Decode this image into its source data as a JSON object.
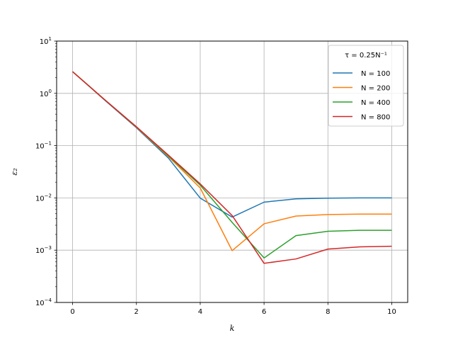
{
  "chart_data": {
    "type": "line",
    "title": "",
    "xlabel": "k",
    "ylabel": "ε₂",
    "yscale": "log",
    "xlim": [
      -0.5,
      10.5
    ],
    "ylim": [
      0.0001,
      10
    ],
    "grid": true,
    "x_ticks": [
      0,
      2,
      4,
      6,
      8,
      10
    ],
    "x_tick_labels": [
      "0",
      "2",
      "4",
      "6",
      "8",
      "10"
    ],
    "y_ticks": [
      0.0001,
      0.001,
      0.01,
      0.1,
      1,
      10
    ],
    "y_tick_labels": [
      {
        "base": "10",
        "exp": "−4"
      },
      {
        "base": "10",
        "exp": "−3"
      },
      {
        "base": "10",
        "exp": "−2"
      },
      {
        "base": "10",
        "exp": "−1"
      },
      {
        "base": "10",
        "exp": "0"
      },
      {
        "base": "10",
        "exp": "1"
      }
    ],
    "legend": {
      "position": "top-right",
      "title": "τ = 0.25N⁻¹"
    },
    "x": [
      0,
      1,
      2,
      3,
      4,
      5,
      6,
      7,
      8,
      9,
      10
    ],
    "series": [
      {
        "name": "N = 100",
        "color": "#1f77b4",
        "values": [
          2.6,
          0.75,
          0.22,
          0.058,
          0.0099,
          0.0043,
          0.0083,
          0.0096,
          0.0099,
          0.01,
          0.01
        ]
      },
      {
        "name": "N = 200",
        "color": "#ff7f0e",
        "values": [
          2.6,
          0.76,
          0.225,
          0.062,
          0.0155,
          0.00098,
          0.0032,
          0.0045,
          0.0048,
          0.0049,
          0.0049
        ]
      },
      {
        "name": "N = 400",
        "color": "#2ca02c",
        "values": [
          2.6,
          0.76,
          0.228,
          0.064,
          0.0175,
          0.0034,
          0.00071,
          0.0019,
          0.0023,
          0.0024,
          0.0024
        ]
      },
      {
        "name": "N = 800",
        "color": "#d62728",
        "values": [
          2.6,
          0.76,
          0.23,
          0.066,
          0.0185,
          0.0046,
          0.00056,
          0.00068,
          0.00105,
          0.00116,
          0.00119
        ]
      }
    ]
  }
}
